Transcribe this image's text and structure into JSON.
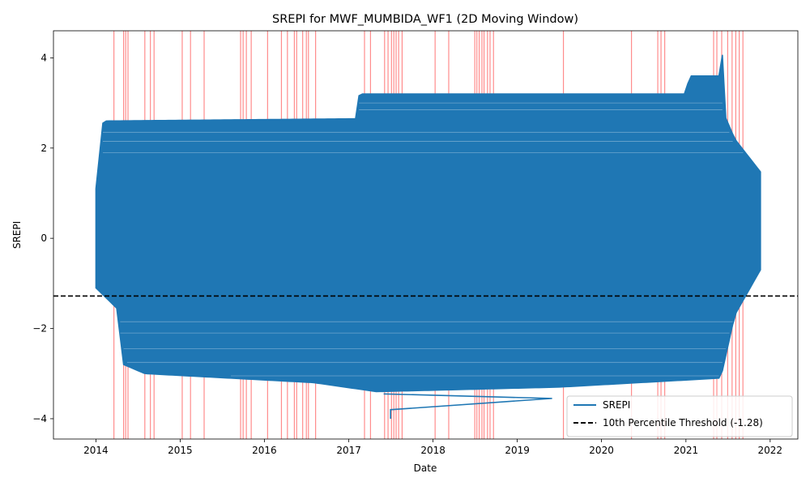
{
  "chart_data": {
    "type": "line",
    "title": "SREPI for MWF_MUMBIDA_WF1 (2D Moving Window)",
    "xlabel": "Date",
    "ylabel": "SREPI",
    "xlim": [
      "2013-07-01",
      "2022-05-01"
    ],
    "ylim": [
      -4.45,
      4.6
    ],
    "x_ticks": [
      "2014",
      "2015",
      "2016",
      "2017",
      "2018",
      "2019",
      "2020",
      "2021",
      "2022"
    ],
    "y_ticks": [
      -4,
      -2,
      0,
      2,
      4
    ],
    "grid": false,
    "legend_position": "lower right",
    "colors": {
      "series": "#1f77b4",
      "threshold": "#000000",
      "drought_band": "#ff0000"
    },
    "series": [
      {
        "name": "SREPI",
        "style": "solid",
        "band_min": [
          {
            "x": "2014-01-01",
            "y": -1.1
          },
          {
            "x": "2014-04-01",
            "y": -1.55
          },
          {
            "x": "2014-05-01",
            "y": -2.8
          },
          {
            "x": "2014-08-01",
            "y": -3.0
          },
          {
            "x": "2016-08-01",
            "y": -3.2
          },
          {
            "x": "2017-05-01",
            "y": -3.4
          },
          {
            "x": "2019-07-01",
            "y": -3.3
          },
          {
            "x": "2021-06-01",
            "y": -3.1
          },
          {
            "x": "2021-08-01",
            "y": -1.7
          },
          {
            "x": "2021-12-01",
            "y": -0.6
          }
        ],
        "band_max": [
          {
            "x": "2014-01-01",
            "y": 1.1
          },
          {
            "x": "2014-02-01",
            "y": 2.6
          },
          {
            "x": "2017-02-01",
            "y": 2.65
          },
          {
            "x": "2017-02-15",
            "y": 3.2
          },
          {
            "x": "2021-01-01",
            "y": 3.2
          },
          {
            "x": "2021-01-15",
            "y": 3.6
          },
          {
            "x": "2021-06-01",
            "y": 3.6
          },
          {
            "x": "2021-06-10",
            "y": 4.2
          },
          {
            "x": "2021-06-20",
            "y": 2.7
          },
          {
            "x": "2021-08-01",
            "y": 2.2
          },
          {
            "x": "2021-12-01",
            "y": 1.4
          }
        ],
        "outlier_path": [
          {
            "x": "2017-07-01",
            "y": -4.0
          },
          {
            "x": "2017-07-01",
            "y": -3.8
          },
          {
            "x": "2019-06-01",
            "y": -3.55
          },
          {
            "x": "2017-06-01",
            "y": -3.45
          }
        ]
      },
      {
        "name": "10th Percentile Threshold (-1.28)",
        "style": "dashed",
        "y": -1.28
      }
    ],
    "drought_periods": [
      "2014-03-20",
      "2014-05-01",
      "2014-05-10",
      "2014-05-20",
      "2014-08-01",
      "2014-08-25",
      "2014-09-10",
      "2015-01-10",
      "2015-02-15",
      "2015-04-15",
      "2015-09-20",
      "2015-10-01",
      "2015-10-15",
      "2015-11-05",
      "2016-01-15",
      "2016-03-15",
      "2016-04-10",
      "2016-05-10",
      "2016-05-20",
      "2016-06-15",
      "2016-07-01",
      "2016-07-10",
      "2016-08-10",
      "2017-03-10",
      "2017-04-05",
      "2017-06-05",
      "2017-06-20",
      "2017-07-05",
      "2017-07-15",
      "2017-07-25",
      "2017-08-05",
      "2017-08-20",
      "2018-01-10",
      "2018-03-10",
      "2018-07-01",
      "2018-07-10",
      "2018-07-20",
      "2018-08-01",
      "2018-08-10",
      "2018-08-25",
      "2018-09-05",
      "2018-09-20",
      "2019-07-20",
      "2020-05-10",
      "2020-09-01",
      "2020-09-15",
      "2020-10-01",
      "2021-05-01",
      "2021-05-15",
      "2021-06-05",
      "2021-07-01",
      "2021-07-20",
      "2021-08-05",
      "2021-08-20",
      "2021-09-05"
    ]
  }
}
